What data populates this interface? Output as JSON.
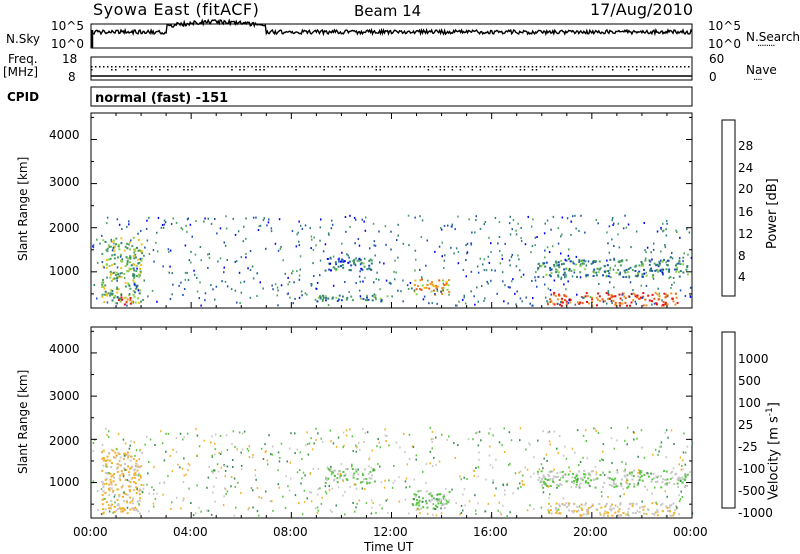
{
  "header": {
    "station": "Syowa East (fitACF)",
    "beam": "Beam 14",
    "date": "17/Aug/2010"
  },
  "noise_panel": {
    "left_label": "N.Sky",
    "left_ticks": [
      "10^5",
      "10^0"
    ],
    "right_label": "N.Search",
    "right_ticks": [
      "10^5",
      "10^0"
    ],
    "right_legend_line": "........"
  },
  "freq_panel": {
    "left_label_1": "Freq.",
    "left_label_2": "[MHz]",
    "left_ticks": [
      "18",
      "8"
    ],
    "right_label": "Nave",
    "right_ticks": [
      "60",
      "0"
    ],
    "right_legend_line": "...."
  },
  "cpid_panel": {
    "label": "CPID",
    "text": "normal (fast) -151"
  },
  "x_axis": {
    "tick_labels": [
      "00:00",
      "04:00",
      "08:00",
      "12:00",
      "16:00",
      "20:00",
      "00:00"
    ],
    "title": "Time UT"
  },
  "power_panel": {
    "ylabel": "Slant Range [km]",
    "yticks": [
      "4000",
      "3000",
      "2000",
      "1000"
    ],
    "colorbar_label": "Power [dB]",
    "colorbar_ticks": [
      "28",
      "24",
      "20",
      "16",
      "12",
      "8",
      "4"
    ],
    "colors": [
      "#0000ff",
      "#1b4fb8",
      "#2e7d77",
      "#4aa15e",
      "#8bd34a",
      "#f2c21b",
      "#f0921e",
      "#ef5a14",
      "#e81010"
    ]
  },
  "velocity_panel": {
    "ylabel": "Slant Range [km]",
    "yticks": [
      "4000",
      "3000",
      "2000",
      "1000"
    ],
    "colorbar_label": "Velocity [m s",
    "colorbar_label_sup": "-1",
    "colorbar_label_end": "]",
    "colorbar_ticks": [
      "1000",
      "500",
      "100",
      "25",
      "-25",
      "-100",
      "-500",
      "-1000"
    ],
    "colors": [
      "#1e3fae",
      "#2f6ea8",
      "#3a8a57",
      "#5cc644",
      "#c8c8c8",
      "#f3b12c",
      "#ef7e1b",
      "#e82a0f"
    ]
  },
  "chart_data": [
    {
      "type": "heatmap",
      "title": "Power",
      "xlabel": "Time UT",
      "ylabel": "Slant Range [km]",
      "xlim": [
        "00:00",
        "24:00"
      ],
      "ylim": [
        180,
        4600
      ],
      "colorbar": {
        "label": "Power [dB]",
        "range": [
          0,
          30
        ]
      },
      "echo_regions": [
        {
          "t_start": 0.4,
          "t_end": 2.0,
          "range_start": 300,
          "range_end": 1800,
          "level": 14
        },
        {
          "t_start": 1.0,
          "t_end": 1.6,
          "range_start": 250,
          "range_end": 450,
          "level": 26
        },
        {
          "t_start": 9.3,
          "t_end": 11.3,
          "range_start": 1050,
          "range_end": 1350,
          "level": 8
        },
        {
          "t_start": 9.0,
          "t_end": 12.0,
          "range_start": 350,
          "range_end": 500,
          "level": 10
        },
        {
          "t_start": 12.8,
          "t_end": 14.3,
          "range_start": 500,
          "range_end": 850,
          "level": 20
        },
        {
          "t_start": 17.8,
          "t_end": 23.8,
          "range_start": 900,
          "range_end": 1300,
          "level": 10
        },
        {
          "t_start": 18.2,
          "t_end": 23.5,
          "range_start": 250,
          "range_end": 550,
          "level": 26
        }
      ]
    },
    {
      "type": "heatmap",
      "title": "Velocity",
      "xlabel": "Time UT",
      "ylabel": "Slant Range [km]",
      "xlim": [
        "00:00",
        "24:00"
      ],
      "ylim": [
        180,
        4600
      ],
      "colorbar": {
        "label": "Velocity [m s-1]",
        "range": [
          -1000,
          1000
        ]
      },
      "echo_regions": [
        {
          "t_start": 0.4,
          "t_end": 2.0,
          "range_start": 300,
          "range_end": 1800,
          "level": -300
        },
        {
          "t_start": 9.3,
          "t_end": 11.3,
          "range_start": 1000,
          "range_end": 1350,
          "level": 0
        },
        {
          "t_start": 12.8,
          "t_end": 14.3,
          "range_start": 400,
          "range_end": 850,
          "level": 60
        },
        {
          "t_start": 17.8,
          "t_end": 23.8,
          "range_start": 900,
          "range_end": 1300,
          "level": 0
        },
        {
          "t_start": 18.2,
          "t_end": 23.5,
          "range_start": 250,
          "range_end": 550,
          "level": -200
        }
      ]
    }
  ]
}
